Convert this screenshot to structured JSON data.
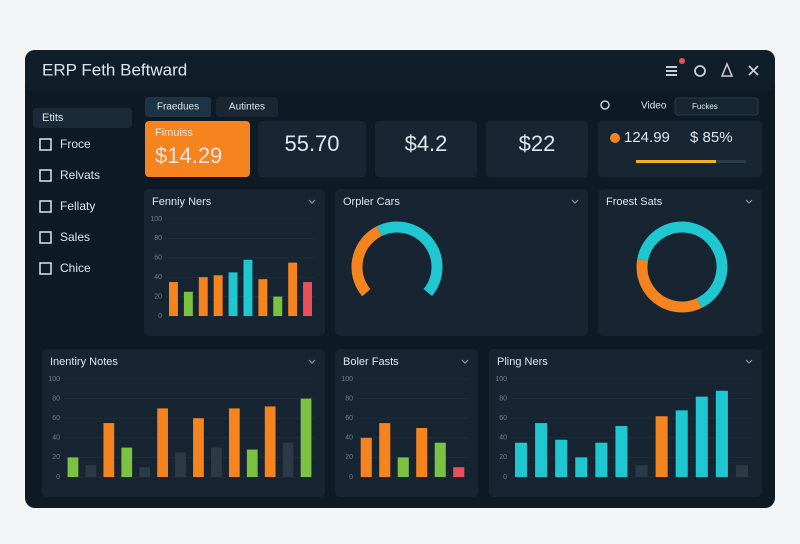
{
  "window": {
    "title": "ERP Feth Beftward"
  },
  "sidebar": {
    "header": "Etits",
    "items": [
      "Froce",
      "Relvats",
      "Fellaty",
      "Sales",
      "Chice"
    ]
  },
  "tabs": [
    "Fraedues",
    "Autintes"
  ],
  "toolbar": {
    "link": "Video",
    "search": "Fuckes"
  },
  "kpis": [
    {
      "label": "Fimuiss",
      "value": "$14.29"
    },
    {
      "value": "55.70"
    },
    {
      "value": "$4.2"
    },
    {
      "value": "$22"
    },
    {
      "value": "124.99",
      "value2": "$ 85%"
    }
  ],
  "panels": [
    {
      "title": "Fenniy Ners",
      "chart": {
        "type": "bar",
        "ylim": [
          0,
          100
        ],
        "yticks": [
          0,
          20,
          40,
          60,
          80,
          100
        ],
        "values": [
          35,
          25,
          40,
          42,
          45,
          58,
          38,
          20,
          55,
          35
        ],
        "colors": [
          "#f5841f",
          "#7cc242",
          "#f5841f",
          "#f5841f",
          "#1fc8d0",
          "#1fc8d0",
          "#f5841f",
          "#7cc242",
          "#f5841f",
          "#e8505b"
        ]
      }
    },
    {
      "title": "Orpler Cars",
      "chart": {
        "type": "gauge",
        "values": [
          40,
          60
        ],
        "colors": [
          "#f5841f",
          "#1fc8d0"
        ]
      }
    },
    {
      "title": "Froest Sats",
      "chart": {
        "type": "donut",
        "values": [
          65,
          35
        ],
        "colors": [
          "#1fc8d0",
          "#f5841f"
        ]
      }
    },
    {
      "title": "Inentiry Notes",
      "chart": {
        "type": "bar",
        "ylim": [
          0,
          100
        ],
        "yticks": [
          0,
          20,
          40,
          60,
          80,
          100
        ],
        "values": [
          20,
          12,
          55,
          30,
          10,
          70,
          25,
          60,
          30,
          70,
          28,
          72,
          35,
          80
        ],
        "colors": [
          "#7cc242",
          "#2c3a46",
          "#f5841f",
          "#7cc242",
          "#2c3a46",
          "#f5841f",
          "#2c3a46",
          "#f5841f",
          "#2c3a46",
          "#f5841f",
          "#7cc242",
          "#f5841f",
          "#2c3a46",
          "#7cc242"
        ]
      }
    },
    {
      "title": "Boler Fasts",
      "chart": {
        "type": "bar",
        "ylim": [
          0,
          100
        ],
        "yticks": [
          0,
          20,
          40,
          60,
          80,
          100
        ],
        "values": [
          40,
          55,
          20,
          50,
          35,
          10
        ],
        "colors": [
          "#f5841f",
          "#f5841f",
          "#7cc242",
          "#f5841f",
          "#7cc242",
          "#e8505b"
        ]
      }
    },
    {
      "title": "Pling Ners",
      "chart": {
        "type": "bar",
        "ylim": [
          0,
          100
        ],
        "yticks": [
          0,
          20,
          40,
          60,
          80,
          100
        ],
        "values": [
          35,
          55,
          38,
          20,
          35,
          52,
          12,
          62,
          68,
          82,
          88,
          12
        ],
        "colors": [
          "#1fc8d0",
          "#1fc8d0",
          "#1fc8d0",
          "#1fc8d0",
          "#1fc8d0",
          "#1fc8d0",
          "#2c3a46",
          "#f5841f",
          "#1fc8d0",
          "#1fc8d0",
          "#1fc8d0",
          "#2c3a46"
        ]
      }
    }
  ]
}
